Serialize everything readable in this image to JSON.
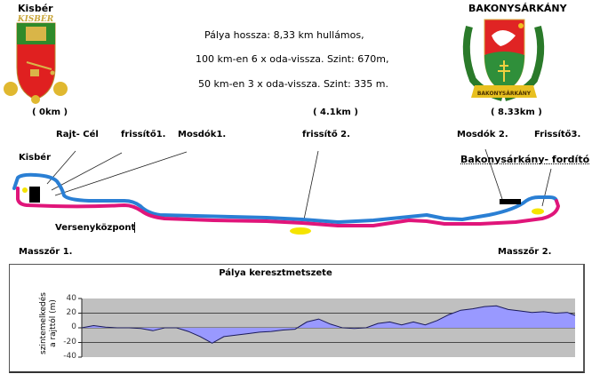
{
  "header": {
    "left_town": {
      "name": "Kisbér",
      "crest_banner": "KISBÉR",
      "km": "( 0km )",
      "crest_icon": "kisber-coat-of-arms-icon"
    },
    "right_town": {
      "name": "BAKONYSÁRKÁNY",
      "crest_banner": "BAKONYSÁRKÁNY",
      "km": "( 8.33km )",
      "crest_icon": "bakonysarkany-coat-of-arms-icon"
    },
    "info_lines": [
      "Pálya hossza: 8,33 km hullámos,",
      "100 km-en 6 x oda-vissza.  Szint: 670m,",
      "50 km-en 3 x oda-vissza. Szint: 335 m."
    ],
    "mid_km": "( 4.1km )"
  },
  "map": {
    "labels": {
      "start_finish": "Rajt- Cél",
      "refresh1": "frissítő1.",
      "washroom1": "Mosdók1.",
      "kisber": "Kisbér",
      "race_center": "Versenyközpont",
      "masseur1": "Masszőr 1.",
      "refresh2": "frissítő 2.",
      "washroom2": "Mosdók 2.",
      "refresh3": "Frissítő3.",
      "turnaround": "Bakonysárkány- fordító",
      "masseur2": "Masszőr 2."
    },
    "colors": {
      "outbound": "#2a7fd4",
      "return": "#e0157a",
      "marker": "#f5e400",
      "building": "#000000"
    }
  },
  "chart_data": {
    "type": "area",
    "title": "Pálya keresztmetszete",
    "xlabel": "",
    "ylabel": "szintemelkedés a rajttól (m)",
    "ylim": [
      -40,
      40
    ],
    "yticks": [
      40,
      20,
      0,
      -20,
      -40
    ],
    "grid": true,
    "x_unit": "km (0–8.33, approx.)",
    "x": [
      0,
      0.2,
      0.4,
      0.6,
      0.8,
      1.0,
      1.2,
      1.4,
      1.6,
      1.8,
      2.0,
      2.2,
      2.4,
      2.6,
      2.8,
      3.0,
      3.2,
      3.4,
      3.6,
      3.8,
      4.0,
      4.2,
      4.4,
      4.6,
      4.8,
      5.0,
      5.2,
      5.4,
      5.6,
      5.8,
      6.0,
      6.2,
      6.4,
      6.6,
      6.8,
      7.0,
      7.2,
      7.4,
      7.6,
      7.8,
      8.0,
      8.2,
      8.33
    ],
    "values": [
      0,
      3,
      1,
      0,
      0,
      -1,
      -4,
      0,
      0,
      -5,
      -12,
      -21,
      -12,
      -10,
      -8,
      -6,
      -5,
      -3,
      -2,
      8,
      12,
      5,
      0,
      -1,
      0,
      6,
      8,
      4,
      8,
      4,
      10,
      18,
      24,
      26,
      29,
      30,
      25,
      23,
      21,
      22,
      20,
      21,
      17
    ],
    "fill_color": "#9999ff",
    "plot_bg": "#c0c0c0"
  }
}
